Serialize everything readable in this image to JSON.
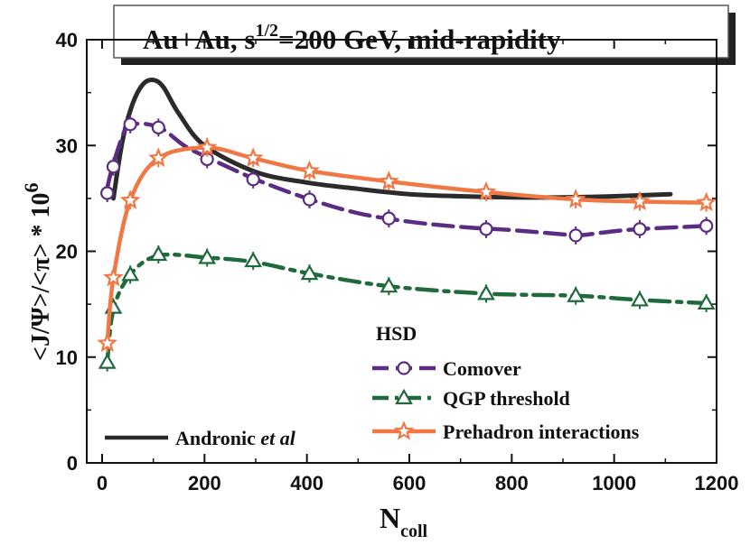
{
  "chart_data": {
    "type": "line",
    "title_parts": {
      "pre": "Au+Au, s",
      "sup": "1/2",
      "post": "=200 GeV, mid-rapidity"
    },
    "xlabel_main": "N",
    "xlabel_sub": "coll",
    "ylabel_main": "<J/Ψ>/<π> * 10",
    "ylabel_sup": "6",
    "xlim": [
      -30,
      1200
    ],
    "ylim": [
      0,
      40
    ],
    "xticks": [
      "0",
      "200",
      "400",
      "600",
      "800",
      "1000",
      "1200"
    ],
    "yticks": [
      "0",
      "10",
      "20",
      "30",
      "40"
    ],
    "legend_header": "HSD",
    "series": [
      {
        "name": "Comover",
        "color": "#5a2d82",
        "marker": "circle",
        "dash": "dashed",
        "curve": [
          [
            10,
            26.0
          ],
          [
            22,
            28.3
          ],
          [
            45,
            31.5
          ],
          [
            60,
            32.0
          ],
          [
            90,
            32.0
          ],
          [
            120,
            31.5
          ],
          [
            160,
            30.0
          ],
          [
            200,
            29.0
          ],
          [
            300,
            26.8
          ],
          [
            400,
            25.0
          ],
          [
            500,
            23.6
          ],
          [
            600,
            22.8
          ],
          [
            700,
            22.3
          ],
          [
            800,
            22.0
          ],
          [
            900,
            21.6
          ],
          [
            930,
            21.5
          ],
          [
            1000,
            21.9
          ],
          [
            1050,
            22.1
          ],
          [
            1180,
            22.4
          ]
        ],
        "points": [
          [
            10,
            25.5
          ],
          [
            22,
            28.0
          ],
          [
            55,
            32.0
          ],
          [
            110,
            31.7
          ],
          [
            205,
            28.7
          ],
          [
            295,
            26.8
          ],
          [
            405,
            24.9
          ],
          [
            560,
            23.1
          ],
          [
            750,
            22.1
          ],
          [
            925,
            21.5
          ],
          [
            1050,
            22.1
          ],
          [
            1180,
            22.4
          ]
        ]
      },
      {
        "name": "QGP threshold",
        "color": "#1e6a3c",
        "marker": "triangle",
        "dash": "dash-dot",
        "curve": [
          [
            10,
            9.5
          ],
          [
            22,
            14.5
          ],
          [
            55,
            17.8
          ],
          [
            110,
            19.6
          ],
          [
            205,
            19.4
          ],
          [
            295,
            19.0
          ],
          [
            405,
            17.9
          ],
          [
            560,
            16.7
          ],
          [
            750,
            16.0
          ],
          [
            925,
            15.8
          ],
          [
            1050,
            15.4
          ],
          [
            1180,
            15.1
          ]
        ],
        "points": [
          [
            10,
            9.5
          ],
          [
            22,
            14.7
          ],
          [
            55,
            17.8
          ],
          [
            110,
            19.7
          ],
          [
            205,
            19.4
          ],
          [
            295,
            19.1
          ],
          [
            405,
            17.9
          ],
          [
            560,
            16.7
          ],
          [
            750,
            16.0
          ],
          [
            925,
            15.8
          ],
          [
            1050,
            15.4
          ],
          [
            1180,
            15.1
          ]
        ]
      },
      {
        "name": "Prehadron interactions",
        "color": "#f07844",
        "marker": "star",
        "dash": "solid",
        "curve": [
          [
            10,
            11.3
          ],
          [
            22,
            17.5
          ],
          [
            55,
            24.8
          ],
          [
            110,
            28.8
          ],
          [
            205,
            29.8
          ],
          [
            295,
            28.8
          ],
          [
            405,
            27.6
          ],
          [
            560,
            26.6
          ],
          [
            750,
            25.6
          ],
          [
            925,
            24.9
          ],
          [
            1050,
            24.7
          ],
          [
            1180,
            24.6
          ]
        ],
        "points": [
          [
            10,
            11.3
          ],
          [
            22,
            17.5
          ],
          [
            55,
            24.8
          ],
          [
            110,
            28.8
          ],
          [
            205,
            29.8
          ],
          [
            295,
            28.8
          ],
          [
            405,
            27.6
          ],
          [
            560,
            26.6
          ],
          [
            750,
            25.6
          ],
          [
            925,
            24.9
          ],
          [
            1050,
            24.7
          ],
          [
            1180,
            24.6
          ]
        ]
      },
      {
        "name_pre": "Andronic ",
        "name_em": "et al",
        "color": "#2b2b2b",
        "marker": "none",
        "dash": "solid",
        "curve": [
          [
            22,
            25.0
          ],
          [
            40,
            30.5
          ],
          [
            60,
            34.0
          ],
          [
            80,
            35.8
          ],
          [
            100,
            36.2
          ],
          [
            120,
            35.5
          ],
          [
            150,
            33.0
          ],
          [
            200,
            30.0
          ],
          [
            300,
            27.5
          ],
          [
            400,
            26.5
          ],
          [
            500,
            25.9
          ],
          [
            600,
            25.4
          ],
          [
            700,
            25.2
          ],
          [
            800,
            25.1
          ],
          [
            900,
            25.1
          ],
          [
            1000,
            25.2
          ],
          [
            1110,
            25.4
          ]
        ],
        "points": []
      }
    ]
  }
}
